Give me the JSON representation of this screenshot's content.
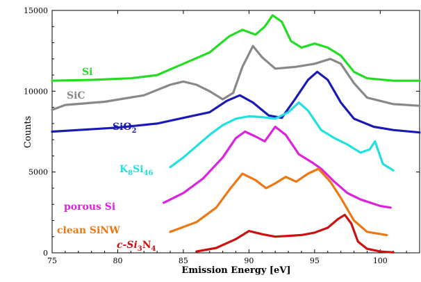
{
  "chart_data": {
    "type": "line",
    "title": "",
    "xlabel": "Emission Energy [eV]",
    "ylabel": "Counts",
    "xlim": [
      75,
      103
    ],
    "ylim": [
      0,
      15000
    ],
    "x_ticks": [
      75,
      80,
      85,
      90,
      95,
      100
    ],
    "y_ticks": [
      0,
      5000,
      10000,
      15000
    ],
    "grid": false,
    "legend": "labels placed inline next to curves",
    "series": [
      {
        "name": "Si",
        "color": "#22dd22",
        "points": [
          [
            75,
            10650
          ],
          [
            78,
            10700
          ],
          [
            81,
            10800
          ],
          [
            83,
            11000
          ],
          [
            85,
            11700
          ],
          [
            87,
            12400
          ],
          [
            88.5,
            13400
          ],
          [
            89.5,
            13800
          ],
          [
            90.5,
            13500
          ],
          [
            91.2,
            14000
          ],
          [
            91.8,
            14700
          ],
          [
            92.5,
            14300
          ],
          [
            93.2,
            13100
          ],
          [
            94,
            12700
          ],
          [
            95,
            12950
          ],
          [
            96,
            12700
          ],
          [
            97,
            12200
          ],
          [
            98,
            11200
          ],
          [
            99,
            10800
          ],
          [
            101,
            10650
          ],
          [
            103,
            10650
          ]
        ]
      },
      {
        "name": "SiC",
        "color": "#888888",
        "points": [
          [
            75,
            8850
          ],
          [
            76,
            9150
          ],
          [
            79,
            9350
          ],
          [
            82,
            9750
          ],
          [
            84,
            10400
          ],
          [
            85,
            10600
          ],
          [
            86,
            10400
          ],
          [
            87,
            10000
          ],
          [
            88,
            9500
          ],
          [
            88.8,
            9900
          ],
          [
            89.5,
            11500
          ],
          [
            90.3,
            12800
          ],
          [
            91,
            12100
          ],
          [
            92,
            11400
          ],
          [
            93.5,
            11500
          ],
          [
            95,
            11700
          ],
          [
            96.2,
            12000
          ],
          [
            97,
            11700
          ],
          [
            98,
            10500
          ],
          [
            99,
            9600
          ],
          [
            101,
            9200
          ],
          [
            103,
            9100
          ]
        ]
      },
      {
        "name": "SiO2",
        "label_text": "SiO",
        "label_sub": "2",
        "color": "#1a1ab4",
        "points": [
          [
            75,
            7500
          ],
          [
            77,
            7600
          ],
          [
            80,
            7750
          ],
          [
            83,
            8000
          ],
          [
            85,
            8350
          ],
          [
            87,
            8700
          ],
          [
            88.3,
            9400
          ],
          [
            89.3,
            9750
          ],
          [
            90.3,
            9300
          ],
          [
            91.5,
            8500
          ],
          [
            92.5,
            8350
          ],
          [
            93.5,
            9500
          ],
          [
            94.5,
            10700
          ],
          [
            95.2,
            11200
          ],
          [
            96,
            10700
          ],
          [
            97,
            9300
          ],
          [
            98,
            8300
          ],
          [
            99.5,
            7800
          ],
          [
            101,
            7600
          ],
          [
            103,
            7450
          ]
        ]
      },
      {
        "name": "K8Si46",
        "label_text": "K",
        "label_sub": "8",
        "label_text2": "Si",
        "label_sub2": "46",
        "color": "#22e0e0",
        "points": [
          [
            84,
            5300
          ],
          [
            85,
            5900
          ],
          [
            86,
            6600
          ],
          [
            87,
            7300
          ],
          [
            88,
            7900
          ],
          [
            89,
            8300
          ],
          [
            90,
            8450
          ],
          [
            91,
            8400
          ],
          [
            92,
            8300
          ],
          [
            93,
            8700
          ],
          [
            93.8,
            9300
          ],
          [
            94.5,
            8800
          ],
          [
            95.5,
            7600
          ],
          [
            96.5,
            7100
          ],
          [
            97.5,
            6700
          ],
          [
            98.5,
            6200
          ],
          [
            99.2,
            6400
          ],
          [
            99.6,
            6900
          ],
          [
            100.2,
            5500
          ],
          [
            101,
            5100
          ]
        ]
      },
      {
        "name": "porous Si",
        "color": "#dd22dd",
        "points": [
          [
            83.5,
            3100
          ],
          [
            85,
            3700
          ],
          [
            86.5,
            4600
          ],
          [
            88,
            5900
          ],
          [
            89,
            7100
          ],
          [
            89.7,
            7500
          ],
          [
            90.5,
            7200
          ],
          [
            91.2,
            6900
          ],
          [
            92,
            7800
          ],
          [
            92.8,
            7300
          ],
          [
            93.8,
            6100
          ],
          [
            94.8,
            5600
          ],
          [
            95.5,
            5200
          ],
          [
            96.5,
            4400
          ],
          [
            97.5,
            3700
          ],
          [
            98.5,
            3300
          ],
          [
            100,
            2900
          ],
          [
            100.8,
            2800
          ]
        ]
      },
      {
        "name": "clean SiNW",
        "color": "#ee7711",
        "points": [
          [
            84,
            1300
          ],
          [
            86,
            1900
          ],
          [
            87.5,
            2800
          ],
          [
            88.5,
            3900
          ],
          [
            89.5,
            4900
          ],
          [
            90.5,
            4500
          ],
          [
            91.3,
            4000
          ],
          [
            92,
            4300
          ],
          [
            92.8,
            4700
          ],
          [
            93.6,
            4400
          ],
          [
            94.5,
            4900
          ],
          [
            95.3,
            5200
          ],
          [
            96.2,
            4400
          ],
          [
            97,
            3400
          ],
          [
            98,
            2000
          ],
          [
            99,
            1300
          ],
          [
            100.5,
            1100
          ]
        ]
      },
      {
        "name": "c-Si3N4",
        "label_text": "c-Si",
        "label_sub": "3",
        "label_text2": "N",
        "label_sub2": "4",
        "color": "#cc1111",
        "points": [
          [
            86,
            80
          ],
          [
            87.5,
            300
          ],
          [
            89,
            850
          ],
          [
            90,
            1350
          ],
          [
            91,
            1150
          ],
          [
            92,
            1000
          ],
          [
            93,
            1050
          ],
          [
            94,
            1100
          ],
          [
            95,
            1250
          ],
          [
            96,
            1550
          ],
          [
            96.8,
            2100
          ],
          [
            97.3,
            2350
          ],
          [
            97.8,
            1800
          ],
          [
            98.3,
            700
          ],
          [
            99,
            250
          ],
          [
            100,
            80
          ],
          [
            101,
            30
          ]
        ]
      }
    ]
  },
  "series_labels": {
    "si": "Si",
    "sic": "SiC",
    "sio2_main": "SiO",
    "sio2_sub": "2",
    "k8si46_k": "K",
    "k8si46_sub1": "8",
    "k8si46_si": "Si",
    "k8si46_sub2": "46",
    "porous": "porous Si",
    "clean": "clean SiNW",
    "csi3n4_main": "c-Si",
    "csi3n4_sub1": "3",
    "csi3n4_n": "N",
    "csi3n4_sub2": "4"
  }
}
